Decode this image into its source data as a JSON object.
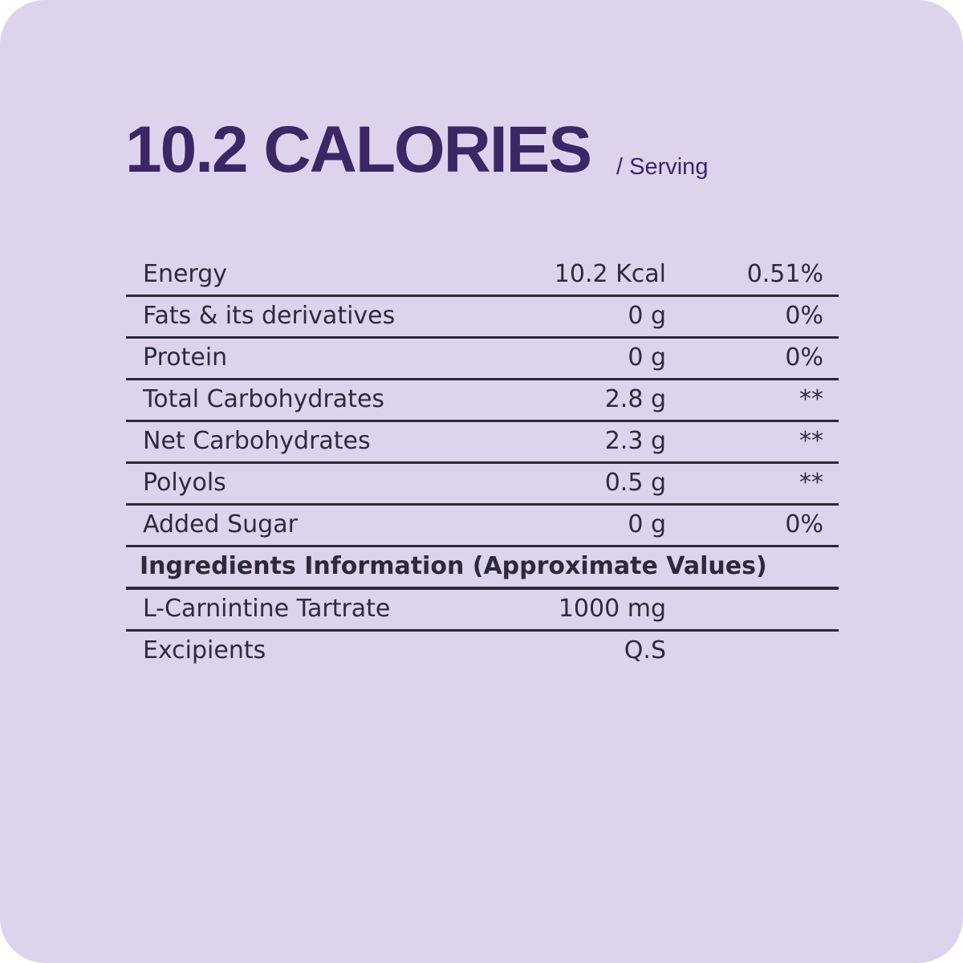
{
  "header": {
    "title": "10.2 CALORIES",
    "subtitle": "/ Serving"
  },
  "nutrition": {
    "rows": [
      [
        "Energy",
        "10.2 Kcal",
        "0.51%"
      ],
      [
        "Fats & its derivatives",
        "0 g",
        "0%"
      ],
      [
        "Protein",
        "0 g",
        "0%"
      ],
      [
        "Total Carbohydrates",
        "2.8 g",
        "**"
      ],
      [
        "Net Carbohydrates",
        "2.3 g",
        "**"
      ],
      [
        "Polyols",
        "0.5 g",
        "**"
      ],
      [
        "Added Sugar",
        "0 g",
        "0%"
      ]
    ]
  },
  "ingredients": {
    "title": "Ingredients Information (Approximate Values)",
    "rows": [
      [
        "L-Carnintine Tartrate",
        "1000 mg"
      ],
      [
        "Excipients",
        "Q.S"
      ]
    ]
  }
}
